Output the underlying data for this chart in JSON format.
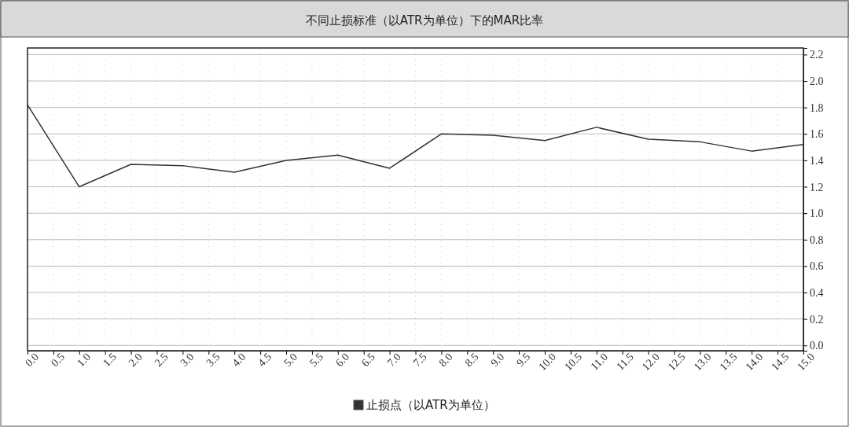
{
  "chart_data": {
    "type": "line",
    "title": "不同止损标准（以ATR为单位）下的MAR比率",
    "x": [
      0,
      1,
      2,
      3,
      4,
      5,
      6,
      7,
      8,
      9,
      10,
      11,
      12,
      13,
      14,
      15
    ],
    "series": [
      {
        "name": "止损点（以ATR为单位）",
        "color": "#333333",
        "values": [
          1.82,
          1.2,
          1.37,
          1.36,
          1.31,
          1.4,
          1.44,
          1.34,
          1.6,
          1.59,
          1.55,
          1.65,
          1.56,
          1.54,
          1.47,
          1.52
        ]
      }
    ],
    "xlim": [
      0,
      15
    ],
    "xticks": [
      {
        "value": 0,
        "label": "0.0"
      },
      {
        "value": 0.5,
        "label": "0.5"
      },
      {
        "value": 1,
        "label": "1.0"
      },
      {
        "value": 1.5,
        "label": "1.5"
      },
      {
        "value": 2,
        "label": "2.0"
      },
      {
        "value": 2.5,
        "label": "2.5"
      },
      {
        "value": 3,
        "label": "3.0"
      },
      {
        "value": 3.5,
        "label": "3.5"
      },
      {
        "value": 4,
        "label": "4.0"
      },
      {
        "value": 4.5,
        "label": "4.5"
      },
      {
        "value": 5,
        "label": "5.0"
      },
      {
        "value": 5.5,
        "label": "5.5"
      },
      {
        "value": 6,
        "label": "6.0"
      },
      {
        "value": 6.5,
        "label": "6.5"
      },
      {
        "value": 7,
        "label": "7.0"
      },
      {
        "value": 7.5,
        "label": "7.5"
      },
      {
        "value": 8,
        "label": "8.0"
      },
      {
        "value": 8.5,
        "label": "8.5"
      },
      {
        "value": 9,
        "label": "9.0"
      },
      {
        "value": 9.5,
        "label": "9.5"
      },
      {
        "value": 10,
        "label": "10.0"
      },
      {
        "value": 10.5,
        "label": "10.5"
      },
      {
        "value": 11,
        "label": "11.0"
      },
      {
        "value": 11.5,
        "label": "11.5"
      },
      {
        "value": 12,
        "label": "12.0"
      },
      {
        "value": 12.5,
        "label": "12.5"
      },
      {
        "value": 13,
        "label": "13.0"
      },
      {
        "value": 13.5,
        "label": "13.5"
      },
      {
        "value": 14,
        "label": "14.0"
      },
      {
        "value": 14.5,
        "label": "14.5"
      },
      {
        "value": 15,
        "label": "15.0"
      }
    ],
    "ylim": [
      -0.04,
      2.25
    ],
    "yticks": [
      {
        "value": 0,
        "label": "0.0"
      },
      0.2,
      0.4,
      0.6,
      0.8,
      {
        "value": 1,
        "label": "1.0"
      },
      1.2,
      1.4,
      1.6,
      1.8,
      {
        "value": 2,
        "label": "2.0"
      },
      2.2
    ],
    "grid": true,
    "legend": "bottom",
    "marker": "none",
    "line_style": "solid"
  }
}
